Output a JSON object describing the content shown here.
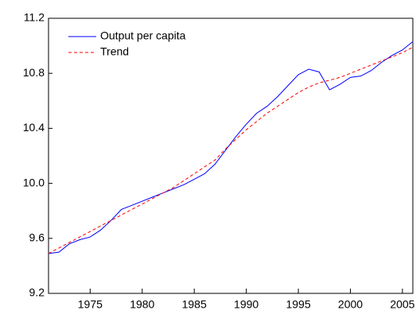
{
  "chart_data": {
    "type": "line",
    "x": [
      1971,
      1972,
      1973,
      1974,
      1975,
      1976,
      1977,
      1978,
      1979,
      1980,
      1981,
      1982,
      1983,
      1984,
      1985,
      1986,
      1987,
      1988,
      1989,
      1990,
      1991,
      1992,
      1993,
      1994,
      1995,
      1996,
      1997,
      1998,
      1999,
      2000,
      2001,
      2002,
      2003,
      2004,
      2005,
      2006
    ],
    "series": [
      {
        "name": "Output per capita",
        "color": "#0000ff",
        "style": "solid",
        "values": [
          9.49,
          9.5,
          9.56,
          9.59,
          9.61,
          9.66,
          9.73,
          9.81,
          9.84,
          9.87,
          9.9,
          9.93,
          9.96,
          9.99,
          10.03,
          10.07,
          10.14,
          10.24,
          10.34,
          10.43,
          10.51,
          10.56,
          10.63,
          10.71,
          10.79,
          10.83,
          10.81,
          10.68,
          10.72,
          10.77,
          10.78,
          10.82,
          10.88,
          10.93,
          10.97,
          11.03
        ]
      },
      {
        "name": "Trend",
        "color": "#ff0000",
        "style": "dashed",
        "values": [
          9.49,
          9.53,
          9.57,
          9.61,
          9.65,
          9.69,
          9.73,
          9.77,
          9.81,
          9.85,
          9.89,
          9.93,
          9.97,
          10.02,
          10.07,
          10.12,
          10.17,
          10.25,
          10.32,
          10.39,
          10.45,
          10.51,
          10.56,
          10.61,
          10.66,
          10.7,
          10.73,
          10.75,
          10.77,
          10.8,
          10.83,
          10.86,
          10.89,
          10.92,
          10.95,
          10.99
        ]
      }
    ],
    "xlim": [
      1971,
      2006
    ],
    "xticks": [
      1975,
      1980,
      1985,
      1990,
      1995,
      2000,
      2005
    ],
    "ylim": [
      9.2,
      11.2
    ],
    "yticks": [
      9.2,
      9.6,
      {
        "value": 10,
        "label": "10.0"
      },
      10.4,
      10.8,
      11.2
    ],
    "grid": false,
    "legend": "upper-left"
  }
}
